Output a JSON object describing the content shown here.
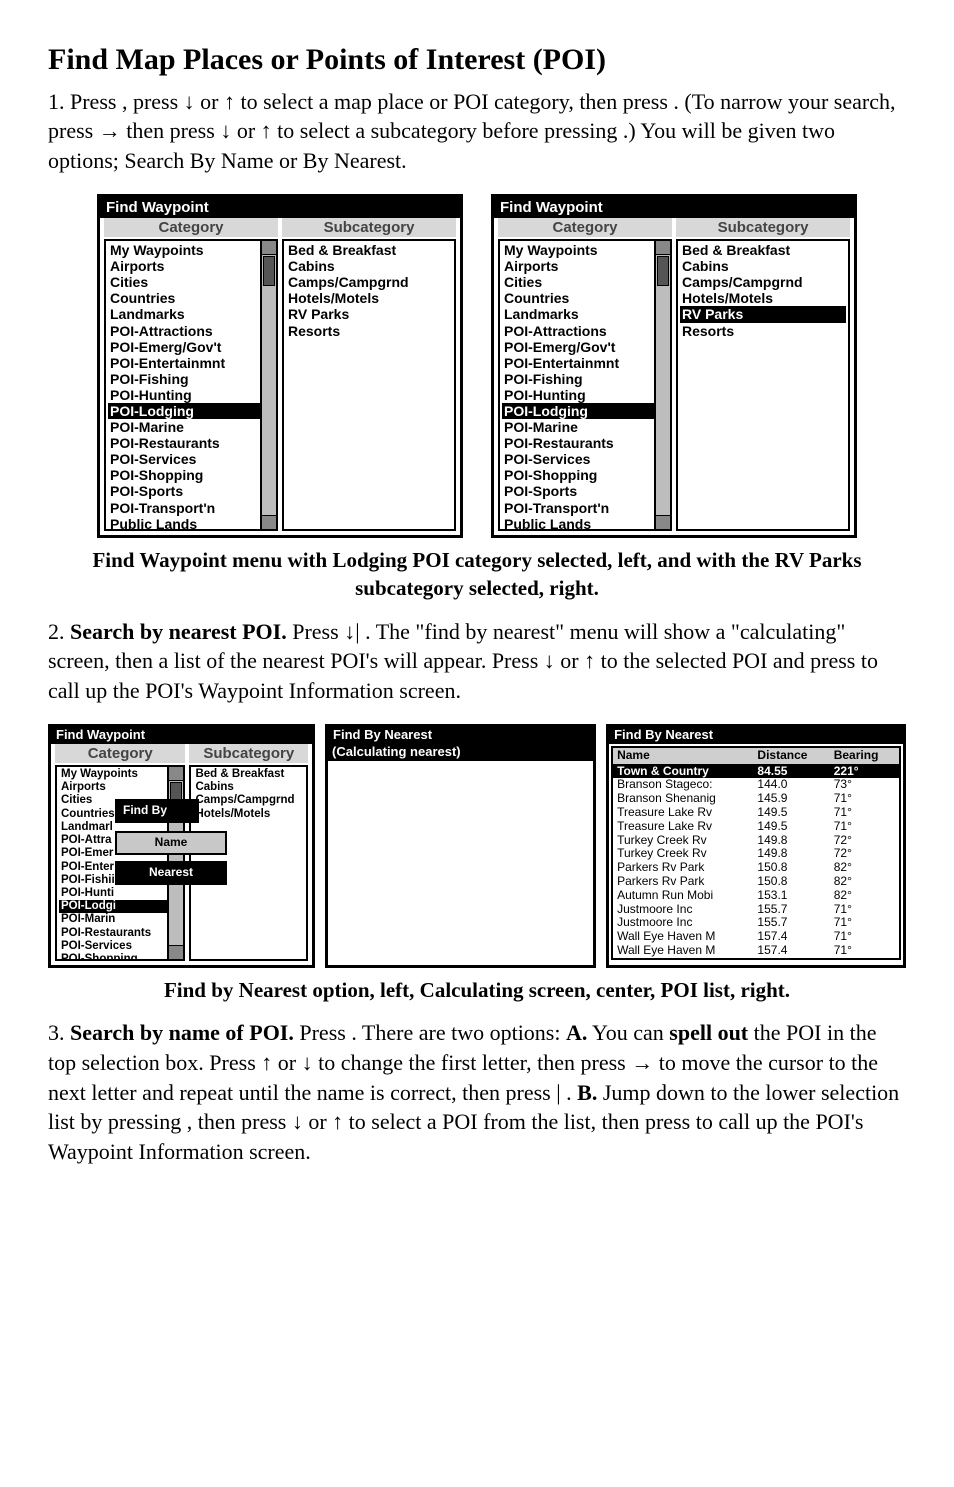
{
  "heading": "Find Map Places or Points of Interest (POI)",
  "para1_a": "1. Press ",
  "para1_b": ", press ",
  "downArrow": "↓",
  "upArrow": "↑",
  "rightArrow": "→",
  "para1_c": " or ",
  "para1_d": " to select a map place or POI category, then press ",
  "para1_e": ". (To narrow your search, press ",
  "para1_f": " then press ",
  "para1_g": " or ",
  "para1_h": " to select a subcategory before pressing ",
  "para1_i": ".) You will be given two options; Search By Name or By Nearest.",
  "findWaypointTitle": "Find Waypoint",
  "categoryHead": "Category",
  "subcategoryHead": "Subcategory",
  "categories": [
    "My Waypoints",
    "Airports",
    "Cities",
    "Countries",
    "Landmarks",
    "POI-Attractions",
    "POI-Emerg/Gov't",
    "POI-Entertainmnt",
    "POI-Fishing",
    "POI-Hunting",
    "POI-Lodging",
    "POI-Marine",
    "POI-Restaurants",
    "POI-Services",
    "POI-Shopping",
    "POI-Sports",
    "POI-Transport'n",
    "Public Lands"
  ],
  "subcategories": [
    "Bed & Breakfast",
    "Cabins",
    "Camps/Campgrnd",
    "Hotels/Motels",
    "RV Parks",
    "Resorts"
  ],
  "fig1_leftSelectedCategory": "POI-Lodging",
  "fig1_rightSelectedSubcategory": "RV Parks",
  "caption1": "Find Waypoint menu with Lodging POI category selected, left, and with the RV Parks subcategory selected, right.",
  "para2_a": "2. ",
  "para2_bold1": "Search by nearest POI.",
  "para2_b": " Press ",
  "para2_b2": "|",
  "para2_c": ". The \"find by nearest\" menu will show a \"calculating\" screen, then a list of the nearest POI's will appear. Press ",
  "para2_d": " or ",
  "para2_e": " to the selected POI and press ",
  "para2_f": " to call up the POI's Waypoint Information screen.",
  "findByTitle": "Find By",
  "overlayName": "Name",
  "overlayNearest": "Nearest",
  "findByNearestTitle": "Find By Nearest",
  "calculatingText": "(Calculating nearest)",
  "poiHeaderName": "Name",
  "poiHeaderDist": "Distance",
  "poiHeaderBear": "Bearing",
  "poiRows": [
    {
      "name": "Town & Country",
      "dist": "84.55",
      "bear": "221°",
      "sel": true
    },
    {
      "name": "Branson Stageco:",
      "dist": "144.0",
      "bear": "73°"
    },
    {
      "name": "Branson Shenanig",
      "dist": "145.9",
      "bear": "71°"
    },
    {
      "name": "Treasure Lake Rv",
      "dist": "149.5",
      "bear": "71°"
    },
    {
      "name": "Treasure Lake Rv",
      "dist": "149.5",
      "bear": "71°"
    },
    {
      "name": "Turkey Creek Rv",
      "dist": "149.8",
      "bear": "72°"
    },
    {
      "name": "Turkey Creek Rv",
      "dist": "149.8",
      "bear": "72°"
    },
    {
      "name": "Parkers Rv Park",
      "dist": "150.8",
      "bear": "82°"
    },
    {
      "name": "Parkers Rv Park",
      "dist": "150.8",
      "bear": "82°"
    },
    {
      "name": "Autumn Run Mobi",
      "dist": "153.1",
      "bear": "82°"
    },
    {
      "name": "Justmoore Inc",
      "dist": "155.7",
      "bear": "71°"
    },
    {
      "name": "Justmoore Inc",
      "dist": "155.7",
      "bear": "71°"
    },
    {
      "name": "Wall Eye Haven M",
      "dist": "157.4",
      "bear": "71°"
    },
    {
      "name": "Wall Eye Haven M",
      "dist": "157.4",
      "bear": "71°"
    }
  ],
  "smallCategories": [
    "My Waypoints",
    "Airports",
    "Cities",
    "Countries",
    "Landmarl",
    "POI-Attra",
    "POI-Emer",
    "POI-Enter",
    "POI-Fishii",
    "POI-Hunti",
    "POI-Lodgi",
    "POI-Marin",
    "POI-Restaurants",
    "POI-Services",
    "POI-Shopping",
    "POI-Sports",
    "POI-Transport'n",
    "Public Lands"
  ],
  "smallSubcats": [
    "Bed & Breakfast",
    "Cabins",
    "Camps/Campgrnd",
    "Hotels/Motels"
  ],
  "caption2": "Find by Nearest option, left, Calculating screen, center, POI list, right.",
  "para3_a": "3. ",
  "para3_bold1": "Search by name of POI.",
  "para3_b": " Press ",
  "para3_c": ". There are two options: ",
  "para3_boldA": "A.",
  "para3_d": " You can ",
  "para3_bold2": "spell out",
  "para3_e": " the POI in the top selection box. Press ",
  "para3_f": " or ",
  "para3_g": " to change the first letter, then press ",
  "para3_h": " to move the cursor to the next letter and repeat until the name is correct, then press ",
  "para3_pipe": "|",
  "para3_i": ". ",
  "para3_boldB": "B.",
  "para3_j": " Jump down to the lower selection list by pressing ",
  "para3_k": ", then press ",
  "para3_l": " or ",
  "para3_m": " to select a POI from the list, then press ",
  "para3_n": " to call up the POI's Waypoint Information screen.",
  "gap8": "        ",
  "gap4": "    "
}
